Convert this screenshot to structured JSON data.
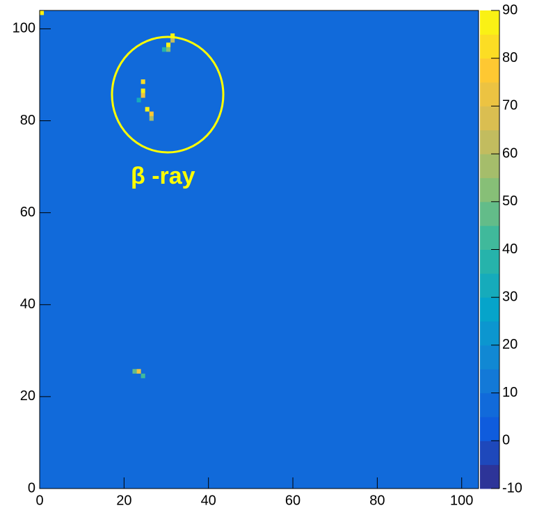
{
  "chart_data": {
    "type": "heatmap",
    "xlim": [
      0,
      104
    ],
    "ylim": [
      0,
      104
    ],
    "xticks": [
      0,
      20,
      40,
      60,
      80,
      100
    ],
    "yticks": [
      0,
      20,
      40,
      60,
      80,
      100
    ],
    "zlim": [
      -10,
      90
    ],
    "zticks": [
      -10,
      0,
      10,
      20,
      30,
      40,
      50,
      60,
      70,
      80,
      90
    ],
    "background_z": 5,
    "cells": {
      "x": [
        0,
        31,
        30,
        31,
        29,
        30,
        24,
        24,
        24,
        23,
        25,
        26,
        26,
        22,
        23,
        24
      ],
      "y": [
        103,
        98,
        96,
        97,
        95,
        95,
        88,
        86,
        85,
        84,
        82,
        81,
        80,
        25,
        25,
        24
      ],
      "z": [
        88,
        85,
        90,
        60,
        35,
        50,
        80,
        88,
        70,
        30,
        85,
        75,
        55,
        45,
        70,
        40
      ]
    },
    "annotation": "β -ray"
  }
}
